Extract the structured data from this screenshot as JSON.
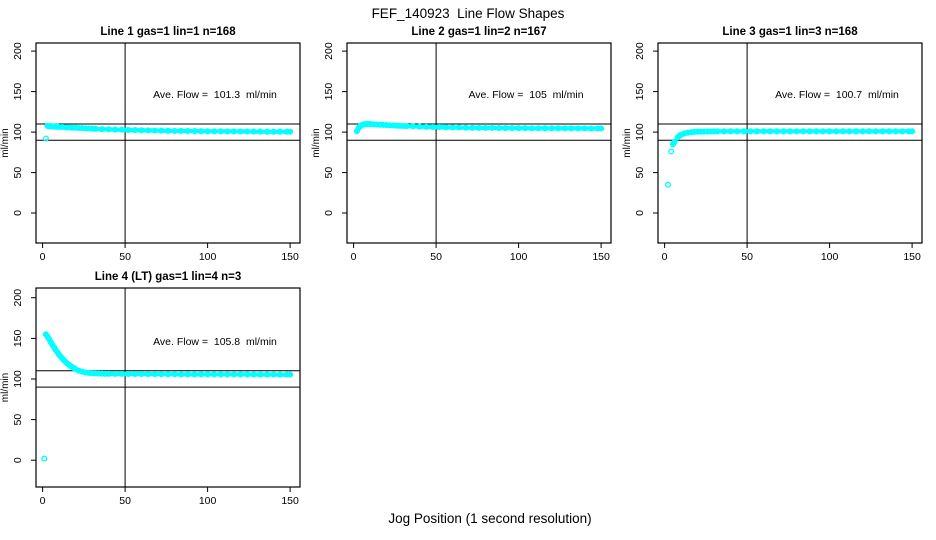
{
  "page": {
    "title": "FEF_140923  Line Flow Shapes",
    "xlabel": "Jog Position (1 second resolution)"
  },
  "colors": {
    "points": "#00FFFF",
    "axis": "#000000",
    "text": "#000000",
    "background": "#FFFFFF"
  },
  "chart_data": [
    {
      "type": "scatter",
      "title": "Line 1 gas=1 lin=1 n=168",
      "annotation": "Ave. Flow =  101.3  ml/min",
      "ave_flow_ml_min": 101.3,
      "ylabel": "ml/min",
      "xticks": [
        0,
        50,
        100,
        150
      ],
      "yticks": [
        0,
        50,
        100,
        150,
        200
      ],
      "xlim": [
        -4,
        156
      ],
      "ylim": [
        -37,
        210
      ],
      "hlines": [
        90,
        110
      ],
      "vline": 50,
      "grid": false,
      "marker": "open-circle",
      "points": [
        [
          2,
          92
        ],
        [
          3,
          107.6
        ],
        [
          4,
          107.1
        ],
        [
          5,
          107.4
        ],
        [
          6,
          106.8
        ],
        [
          7,
          107.0
        ],
        [
          8,
          106.5
        ],
        [
          9,
          106.9
        ],
        [
          10,
          106.3
        ],
        [
          12,
          106.2
        ],
        [
          14,
          105.7
        ],
        [
          16,
          105.9
        ],
        [
          18,
          105.3
        ],
        [
          20,
          105.4
        ],
        [
          22,
          105.0
        ],
        [
          24,
          104.9
        ],
        [
          26,
          104.5
        ],
        [
          28,
          104.4
        ],
        [
          30,
          104.2
        ],
        [
          32,
          104.0
        ],
        [
          36,
          103.6
        ],
        [
          40,
          103.4
        ],
        [
          44,
          103.0
        ],
        [
          48,
          102.9
        ],
        [
          52,
          102.6
        ],
        [
          56,
          102.4
        ],
        [
          60,
          102.2
        ],
        [
          64,
          102.1
        ],
        [
          68,
          101.9
        ],
        [
          72,
          101.8
        ],
        [
          76,
          101.6
        ],
        [
          80,
          101.5
        ],
        [
          84,
          101.4
        ],
        [
          88,
          101.3
        ],
        [
          92,
          101.2
        ],
        [
          96,
          101.1
        ],
        [
          100,
          101.0
        ],
        [
          104,
          101.0
        ],
        [
          108,
          100.9
        ],
        [
          112,
          100.8
        ],
        [
          116,
          100.8
        ],
        [
          120,
          100.7
        ],
        [
          124,
          100.7
        ],
        [
          128,
          100.6
        ],
        [
          132,
          100.6
        ],
        [
          136,
          100.5
        ],
        [
          140,
          100.5
        ],
        [
          144,
          100.4
        ],
        [
          148,
          100.4
        ],
        [
          150,
          100.4
        ]
      ]
    },
    {
      "type": "scatter",
      "title": "Line 2 gas=1 lin=2 n=167",
      "annotation": "Ave. Flow =  105  ml/min",
      "ave_flow_ml_min": 105,
      "ylabel": "ml/min",
      "xticks": [
        0,
        50,
        100,
        150
      ],
      "yticks": [
        0,
        50,
        100,
        150,
        200
      ],
      "xlim": [
        -4,
        156
      ],
      "ylim": [
        -37,
        210
      ],
      "hlines": [
        90,
        110
      ],
      "vline": 50,
      "grid": false,
      "marker": "open-circle",
      "points": [
        [
          2,
          101.2
        ],
        [
          3,
          104.9
        ],
        [
          4,
          107.2
        ],
        [
          5,
          108.6
        ],
        [
          6,
          109.3
        ],
        [
          7,
          109.7
        ],
        [
          8,
          109.9
        ],
        [
          9,
          109.9
        ],
        [
          10,
          109.8
        ],
        [
          12,
          109.6
        ],
        [
          14,
          109.3
        ],
        [
          16,
          109.1
        ],
        [
          18,
          108.8
        ],
        [
          20,
          108.6
        ],
        [
          22,
          108.4
        ],
        [
          24,
          108.1
        ],
        [
          26,
          107.9
        ],
        [
          28,
          107.7
        ],
        [
          30,
          107.5
        ],
        [
          32,
          107.4
        ],
        [
          36,
          107.1
        ],
        [
          40,
          106.8
        ],
        [
          44,
          106.5
        ],
        [
          48,
          106.3
        ],
        [
          52,
          106.1
        ],
        [
          56,
          105.9
        ],
        [
          60,
          105.7
        ],
        [
          64,
          105.6
        ],
        [
          68,
          105.4
        ],
        [
          72,
          105.3
        ],
        [
          76,
          105.2
        ],
        [
          80,
          105.1
        ],
        [
          84,
          105.1
        ],
        [
          88,
          105.0
        ],
        [
          92,
          104.9
        ],
        [
          96,
          104.9
        ],
        [
          100,
          104.8
        ],
        [
          104,
          104.8
        ],
        [
          108,
          104.7
        ],
        [
          112,
          104.7
        ],
        [
          116,
          104.6
        ],
        [
          120,
          104.6
        ],
        [
          124,
          104.6
        ],
        [
          128,
          104.5
        ],
        [
          132,
          104.5
        ],
        [
          136,
          104.5
        ],
        [
          140,
          104.5
        ],
        [
          144,
          104.4
        ],
        [
          148,
          104.4
        ],
        [
          150,
          104.4
        ]
      ]
    },
    {
      "type": "scatter",
      "title": "Line 3 gas=1 lin=3 n=168",
      "annotation": "Ave. Flow =  100.7  ml/min",
      "ave_flow_ml_min": 100.7,
      "ylabel": "ml/min",
      "xticks": [
        0,
        50,
        100,
        150
      ],
      "yticks": [
        0,
        50,
        100,
        150,
        200
      ],
      "xlim": [
        -4,
        156
      ],
      "ylim": [
        -37,
        210
      ],
      "hlines": [
        90,
        110
      ],
      "vline": 50,
      "grid": false,
      "marker": "open-circle",
      "points": [
        [
          2,
          35
        ],
        [
          4,
          76
        ],
        [
          5,
          85
        ],
        [
          6,
          88
        ],
        [
          8,
          93.5
        ],
        [
          9,
          95.5
        ],
        [
          10,
          96.8
        ],
        [
          12,
          98.3
        ],
        [
          14,
          99.2
        ],
        [
          16,
          99.8
        ],
        [
          18,
          100.2
        ],
        [
          20,
          100.4
        ],
        [
          22,
          100.5
        ],
        [
          24,
          100.6
        ],
        [
          26,
          100.7
        ],
        [
          28,
          100.7
        ],
        [
          30,
          100.8
        ],
        [
          32,
          100.8
        ],
        [
          36,
          100.8
        ],
        [
          40,
          100.9
        ],
        [
          44,
          100.9
        ],
        [
          48,
          100.9
        ],
        [
          52,
          101.0
        ],
        [
          56,
          100.9
        ],
        [
          60,
          101.0
        ],
        [
          64,
          100.9
        ],
        [
          68,
          101.0
        ],
        [
          72,
          100.9
        ],
        [
          76,
          101.0
        ],
        [
          80,
          101.0
        ],
        [
          84,
          100.9
        ],
        [
          88,
          101.0
        ],
        [
          92,
          100.9
        ],
        [
          96,
          101.0
        ],
        [
          100,
          101.0
        ],
        [
          104,
          100.9
        ],
        [
          108,
          101.0
        ],
        [
          112,
          100.9
        ],
        [
          116,
          101.0
        ],
        [
          120,
          101.0
        ],
        [
          124,
          100.9
        ],
        [
          128,
          101.0
        ],
        [
          132,
          100.9
        ],
        [
          136,
          101.0
        ],
        [
          140,
          101.0
        ],
        [
          144,
          100.9
        ],
        [
          148,
          101.0
        ],
        [
          150,
          101.0
        ]
      ]
    },
    {
      "type": "scatter",
      "title": "Line 4 (LT) gas=1 lin=4 n=3",
      "annotation": "Ave. Flow =  105.8  ml/min",
      "ave_flow_ml_min": 105.8,
      "ylabel": "ml/min",
      "xticks": [
        0,
        50,
        100,
        150
      ],
      "yticks": [
        0,
        50,
        100,
        150,
        200
      ],
      "xlim": [
        -4,
        156
      ],
      "ylim": [
        -33,
        212
      ],
      "hlines": [
        90,
        110
      ],
      "vline": 50,
      "grid": false,
      "marker": "open-circle",
      "points": [
        [
          1,
          2
        ],
        [
          2,
          155
        ],
        [
          3,
          152.2
        ],
        [
          4,
          148.8
        ],
        [
          5,
          145.3
        ],
        [
          6,
          141.8
        ],
        [
          7,
          138.6
        ],
        [
          8,
          135.5
        ],
        [
          9,
          132.6
        ],
        [
          10,
          129.9
        ],
        [
          11,
          127.4
        ],
        [
          12,
          125.1
        ],
        [
          13,
          122.9
        ],
        [
          14,
          120.9
        ],
        [
          15,
          119.1
        ],
        [
          16,
          117.4
        ],
        [
          17,
          115.9
        ],
        [
          18,
          114.5
        ],
        [
          19,
          113.2
        ],
        [
          20,
          112.1
        ],
        [
          22,
          110.2
        ],
        [
          24,
          108.9
        ],
        [
          26,
          108.0
        ],
        [
          28,
          107.4
        ],
        [
          30,
          107.0
        ],
        [
          32,
          106.8
        ],
        [
          34,
          106.6
        ],
        [
          36,
          106.5
        ],
        [
          38,
          106.4
        ],
        [
          40,
          106.4
        ],
        [
          44,
          106.3
        ],
        [
          48,
          106.2
        ],
        [
          52,
          106.2
        ],
        [
          56,
          106.1
        ],
        [
          60,
          106.1
        ],
        [
          64,
          106.0
        ],
        [
          68,
          106.0
        ],
        [
          72,
          105.9
        ],
        [
          76,
          105.9
        ],
        [
          80,
          105.9
        ],
        [
          84,
          105.8
        ],
        [
          88,
          105.8
        ],
        [
          92,
          105.8
        ],
        [
          96,
          105.8
        ],
        [
          100,
          105.7
        ],
        [
          104,
          105.7
        ],
        [
          108,
          105.7
        ],
        [
          112,
          105.6
        ],
        [
          116,
          105.6
        ],
        [
          120,
          105.6
        ],
        [
          124,
          105.6
        ],
        [
          128,
          105.5
        ],
        [
          132,
          105.5
        ],
        [
          136,
          105.5
        ],
        [
          140,
          105.5
        ],
        [
          144,
          105.4
        ],
        [
          148,
          105.4
        ],
        [
          150,
          105.4
        ]
      ]
    }
  ]
}
